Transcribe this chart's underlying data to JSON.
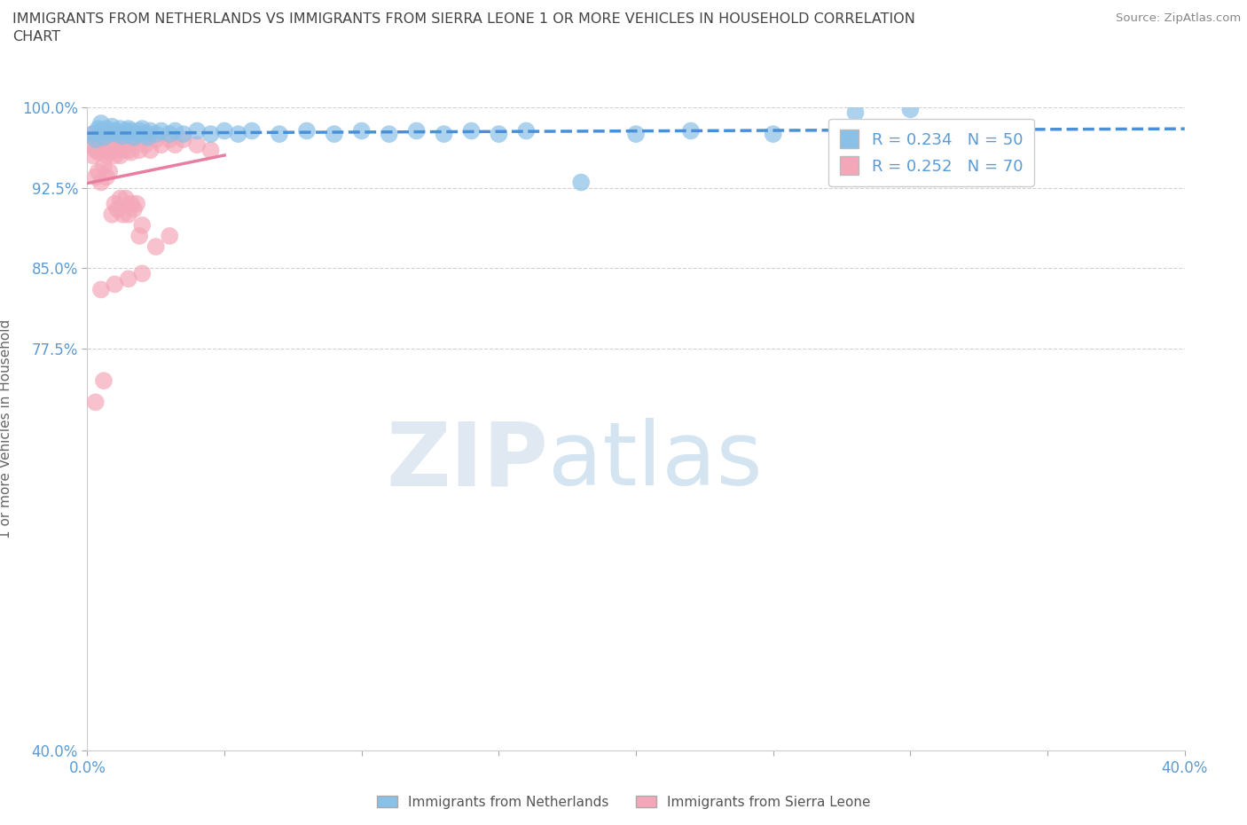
{
  "title": "IMMIGRANTS FROM NETHERLANDS VS IMMIGRANTS FROM SIERRA LEONE 1 OR MORE VEHICLES IN HOUSEHOLD CORRELATION\nCHART",
  "source": "Source: ZipAtlas.com",
  "ylabel": "1 or more Vehicles in Household",
  "xlim": [
    0.0,
    40.0
  ],
  "ylim": [
    40.0,
    100.0
  ],
  "xticks": [
    0.0,
    5.0,
    10.0,
    15.0,
    20.0,
    25.0,
    30.0,
    35.0,
    40.0
  ],
  "yticks": [
    40.0,
    77.5,
    85.0,
    92.5,
    100.0
  ],
  "ytick_labels": [
    "40.0%",
    "77.5%",
    "85.0%",
    "92.5%",
    "100.0%"
  ],
  "xtick_labels": [
    "0.0%",
    "",
    "",
    "",
    "",
    "",
    "",
    "",
    "40.0%"
  ],
  "netherlands_color": "#89c0e8",
  "sierra_leone_color": "#f4a7b9",
  "trend_netherlands_color": "#4a90d9",
  "trend_sierra_leone_color": "#e87fa0",
  "netherlands_R": 0.234,
  "netherlands_N": 50,
  "sierra_leone_R": 0.252,
  "sierra_leone_N": 70,
  "legend_label_netherlands": "Immigrants from Netherlands",
  "legend_label_sierra_leone": "Immigrants from Sierra Leone",
  "watermark_zip": "ZIP",
  "watermark_atlas": "atlas",
  "background_color": "#ffffff",
  "netherlands_x": [
    0.2,
    0.3,
    0.4,
    0.5,
    0.5,
    0.6,
    0.7,
    0.8,
    0.9,
    1.0,
    1.1,
    1.2,
    1.3,
    1.4,
    1.5,
    1.5,
    1.6,
    1.7,
    1.8,
    1.9,
    2.0,
    2.1,
    2.2,
    2.3,
    2.5,
    2.7,
    3.0,
    3.2,
    3.5,
    4.0,
    4.5,
    5.0,
    5.5,
    6.0,
    7.0,
    8.0,
    9.0,
    10.0,
    11.0,
    12.0,
    13.0,
    14.0,
    15.0,
    16.0,
    18.0,
    20.0,
    22.0,
    25.0,
    28.0,
    30.0
  ],
  "netherlands_y": [
    97.5,
    97.0,
    98.0,
    97.8,
    98.5,
    97.2,
    98.0,
    97.5,
    98.2,
    97.8,
    97.5,
    98.0,
    97.3,
    97.8,
    98.0,
    97.5,
    97.8,
    97.2,
    97.5,
    97.8,
    98.0,
    97.5,
    97.2,
    97.8,
    97.5,
    97.8,
    97.5,
    97.8,
    97.5,
    97.8,
    97.5,
    97.8,
    97.5,
    97.8,
    97.5,
    97.8,
    97.5,
    97.8,
    97.5,
    97.8,
    97.5,
    97.8,
    97.5,
    97.8,
    93.0,
    97.5,
    97.8,
    97.5,
    99.5,
    99.8
  ],
  "sierra_leone_x": [
    0.1,
    0.2,
    0.2,
    0.3,
    0.3,
    0.4,
    0.4,
    0.5,
    0.5,
    0.6,
    0.6,
    0.7,
    0.7,
    0.8,
    0.8,
    0.9,
    0.9,
    1.0,
    1.0,
    1.1,
    1.1,
    1.2,
    1.2,
    1.3,
    1.3,
    1.4,
    1.5,
    1.5,
    1.6,
    1.6,
    1.7,
    1.8,
    1.9,
    2.0,
    2.1,
    2.2,
    2.3,
    2.5,
    2.7,
    3.0,
    3.2,
    3.5,
    4.0,
    4.5,
    0.3,
    0.4,
    0.5,
    0.6,
    0.7,
    0.8,
    0.9,
    1.0,
    1.1,
    1.2,
    1.3,
    1.4,
    1.5,
    1.6,
    1.7,
    1.8,
    1.9,
    2.0,
    2.5,
    3.0,
    0.5,
    1.0,
    1.5,
    2.0,
    0.3,
    0.6
  ],
  "sierra_leone_y": [
    96.5,
    97.5,
    95.5,
    97.0,
    96.0,
    96.8,
    95.8,
    97.2,
    96.2,
    97.0,
    96.0,
    97.5,
    95.5,
    97.0,
    95.8,
    97.2,
    96.0,
    97.5,
    95.5,
    97.0,
    96.0,
    97.5,
    95.5,
    97.0,
    96.0,
    97.2,
    97.5,
    96.0,
    97.0,
    95.8,
    97.2,
    97.5,
    96.0,
    97.0,
    96.5,
    97.5,
    96.0,
    97.0,
    96.5,
    97.0,
    96.5,
    97.0,
    96.5,
    96.0,
    93.5,
    94.0,
    93.0,
    94.5,
    93.5,
    94.0,
    90.0,
    91.0,
    90.5,
    91.5,
    90.0,
    91.5,
    90.0,
    91.0,
    90.5,
    91.0,
    88.0,
    89.0,
    87.0,
    88.0,
    83.0,
    83.5,
    84.0,
    84.5,
    72.5,
    74.5
  ]
}
